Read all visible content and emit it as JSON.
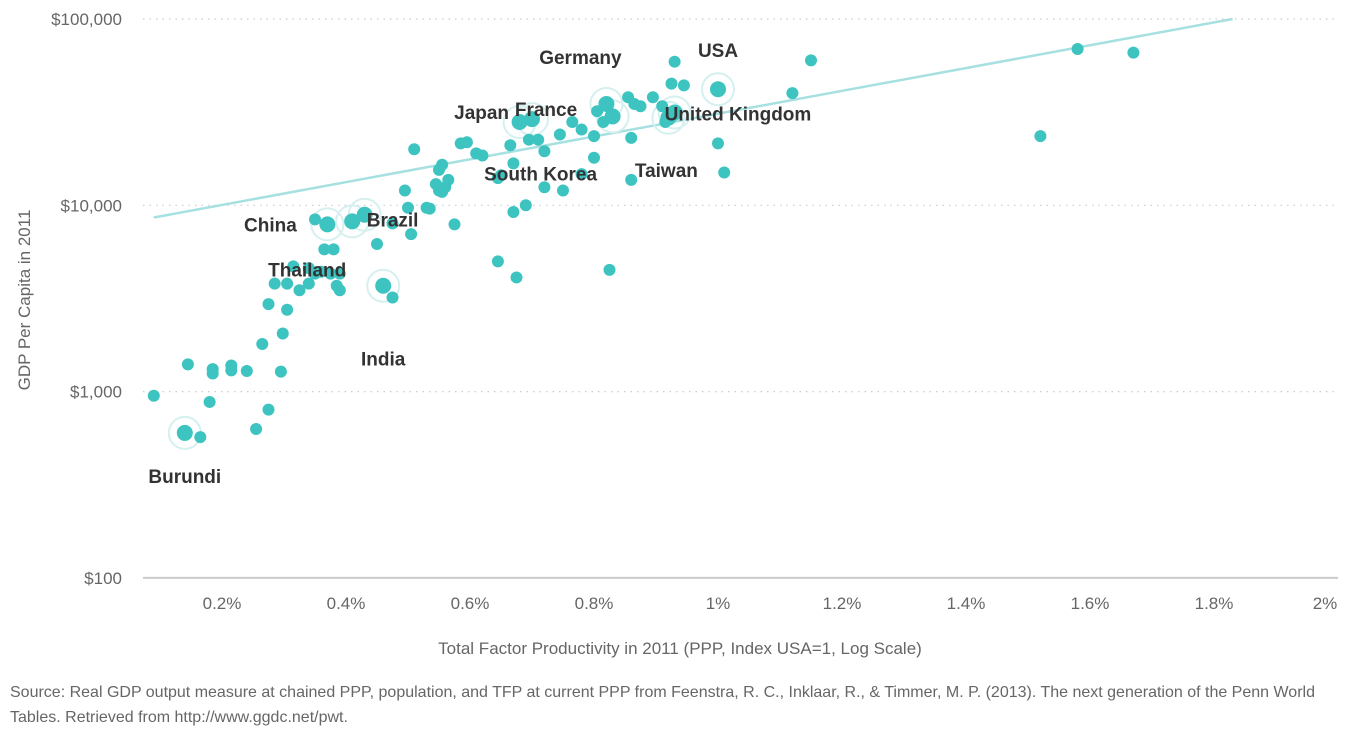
{
  "chart_data": {
    "type": "scatter",
    "title": "",
    "xlabel": "Total Factor Productivity in 2011 (PPP, Index USA=1, Log Scale)",
    "ylabel": "GDP Per Capita in 2011",
    "x_scale": "linear",
    "y_scale": "log",
    "xlim": [
      0.0,
      2.0
    ],
    "ylim": [
      100,
      100000
    ],
    "x_ticks": [
      0.2,
      0.4,
      0.6,
      0.8,
      1.0,
      1.2,
      1.4,
      1.6,
      1.8,
      2.0
    ],
    "x_tick_labels": [
      "0.2%",
      "0.4%",
      "0.6%",
      "0.8%",
      "1%",
      "1.2%",
      "1.4%",
      "1.6%",
      "1.8%",
      "2%"
    ],
    "y_ticks": [
      100,
      1000,
      10000,
      100000
    ],
    "y_tick_labels": [
      "$100",
      "$1,000",
      "$10,000",
      "$100,000"
    ],
    "grid": "horizontal-dotted",
    "colors": {
      "point": "#3dc4c1",
      "trend": "#a6e0e0",
      "halo": "#d5f0ef",
      "label": "#333333",
      "axis_text": "#666666",
      "grid": "#cccccc",
      "baseline": "#cccccc"
    },
    "trendline": {
      "x": [
        0.09,
        1.83
      ],
      "y": [
        8600,
        100000
      ]
    },
    "highlighted": [
      {
        "name": "USA",
        "x": 1.0,
        "y": 42000
      },
      {
        "name": "United Kingdom",
        "x": 0.93,
        "y": 31500
      },
      {
        "name": "Germany",
        "x": 0.82,
        "y": 35000
      },
      {
        "name": "France",
        "x": 0.7,
        "y": 29000
      },
      {
        "name": "Japan",
        "x": 0.68,
        "y": 28000
      },
      {
        "name": "South Korea",
        "x": 0.83,
        "y": 30000
      },
      {
        "name": "Taiwan",
        "x": 0.92,
        "y": 29500
      },
      {
        "name": "Brazil",
        "x": 0.43,
        "y": 8900
      },
      {
        "name": "China",
        "x": 0.37,
        "y": 7900
      },
      {
        "name": "Thailand",
        "x": 0.41,
        "y": 8200
      },
      {
        "name": "India",
        "x": 0.46,
        "y": 3700
      },
      {
        "name": "Burundi",
        "x": 0.14,
        "y": 600
      }
    ],
    "labels": [
      {
        "text": "USA",
        "x": 1.0,
        "y": 42000
      },
      {
        "text": "United Kingdom",
        "x": 0.93,
        "y": 31500
      },
      {
        "text": "Germany",
        "x": 0.82,
        "y": 35000
      },
      {
        "text": "France",
        "x": 0.7,
        "y": 29000
      },
      {
        "text": "Japan",
        "x": 0.68,
        "y": 28000
      },
      {
        "text": "South Korea",
        "x": 0.68,
        "y": 17000
      },
      {
        "text": "Taiwan",
        "x": 0.92,
        "y": 29500
      },
      {
        "text": "Brazil",
        "x": 0.43,
        "y": 8900
      },
      {
        "text": "China",
        "x": 0.37,
        "y": 7900
      },
      {
        "text": "Thailand",
        "x": 0.41,
        "y": 8200
      },
      {
        "text": "India",
        "x": 0.46,
        "y": 3700
      },
      {
        "text": "Burundi",
        "x": 0.14,
        "y": 600
      }
    ],
    "points": [
      [
        0.09,
        950
      ],
      [
        0.145,
        1400
      ],
      [
        0.185,
        1320
      ],
      [
        0.185,
        1250
      ],
      [
        0.18,
        880
      ],
      [
        0.165,
        570
      ],
      [
        0.215,
        1380
      ],
      [
        0.215,
        1300
      ],
      [
        0.24,
        1290
      ],
      [
        0.255,
        630
      ],
      [
        0.275,
        800
      ],
      [
        0.295,
        1280
      ],
      [
        0.265,
        1800
      ],
      [
        0.298,
        2050
      ],
      [
        0.275,
        2950
      ],
      [
        0.305,
        2750
      ],
      [
        0.285,
        3800
      ],
      [
        0.305,
        3800
      ],
      [
        0.325,
        3500
      ],
      [
        0.34,
        3800
      ],
      [
        0.315,
        4700
      ],
      [
        0.35,
        4300
      ],
      [
        0.36,
        4400
      ],
      [
        0.375,
        4300
      ],
      [
        0.34,
        4600
      ],
      [
        0.365,
        5800
      ],
      [
        0.38,
        5800
      ],
      [
        0.385,
        3700
      ],
      [
        0.39,
        3500
      ],
      [
        0.39,
        4300
      ],
      [
        0.35,
        8400
      ],
      [
        0.45,
        6200
      ],
      [
        0.475,
        3200
      ],
      [
        0.475,
        8000
      ],
      [
        0.505,
        7000
      ],
      [
        0.5,
        9700
      ],
      [
        0.495,
        12000
      ],
      [
        0.53,
        9700
      ],
      [
        0.535,
        9600
      ],
      [
        0.545,
        13000
      ],
      [
        0.55,
        12000
      ],
      [
        0.555,
        11800
      ],
      [
        0.56,
        12500
      ],
      [
        0.575,
        7900
      ],
      [
        0.51,
        20000
      ],
      [
        0.555,
        16500
      ],
      [
        0.55,
        15500
      ],
      [
        0.565,
        13700
      ],
      [
        0.585,
        21500
      ],
      [
        0.595,
        21800
      ],
      [
        0.61,
        19000
      ],
      [
        0.62,
        18500
      ],
      [
        0.645,
        14000
      ],
      [
        0.65,
        14500
      ],
      [
        0.665,
        21000
      ],
      [
        0.67,
        16800
      ],
      [
        0.67,
        9200
      ],
      [
        0.69,
        10000
      ],
      [
        0.645,
        5000
      ],
      [
        0.675,
        4100
      ],
      [
        0.825,
        4500
      ],
      [
        0.695,
        22500
      ],
      [
        0.71,
        22500
      ],
      [
        0.72,
        19500
      ],
      [
        0.72,
        12500
      ],
      [
        0.745,
        24000
      ],
      [
        0.75,
        12000
      ],
      [
        0.765,
        28000
      ],
      [
        0.78,
        25500
      ],
      [
        0.78,
        14700
      ],
      [
        0.8,
        23500
      ],
      [
        0.8,
        18000
      ],
      [
        0.805,
        32000
      ],
      [
        0.815,
        28000
      ],
      [
        0.855,
        38000
      ],
      [
        0.86,
        23000
      ],
      [
        0.86,
        13700
      ],
      [
        0.865,
        35000
      ],
      [
        0.875,
        34000
      ],
      [
        0.895,
        38000
      ],
      [
        0.91,
        34000
      ],
      [
        0.925,
        45000
      ],
      [
        0.93,
        59000
      ],
      [
        0.945,
        44000
      ],
      [
        0.915,
        28000
      ],
      [
        1.0,
        21500
      ],
      [
        1.01,
        15000
      ],
      [
        1.12,
        40000
      ],
      [
        1.15,
        60000
      ],
      [
        1.52,
        23500
      ],
      [
        1.58,
        69000
      ],
      [
        1.67,
        66000
      ]
    ]
  },
  "source": "Source: Real GDP output measure at chained PPP, population, and TFP at current PPP from Feenstra, R. C., Inklaar, R., & Timmer, M. P. (2013). The next generation of the Penn World Tables. Retrieved from http://www.ggdc.net/pwt."
}
